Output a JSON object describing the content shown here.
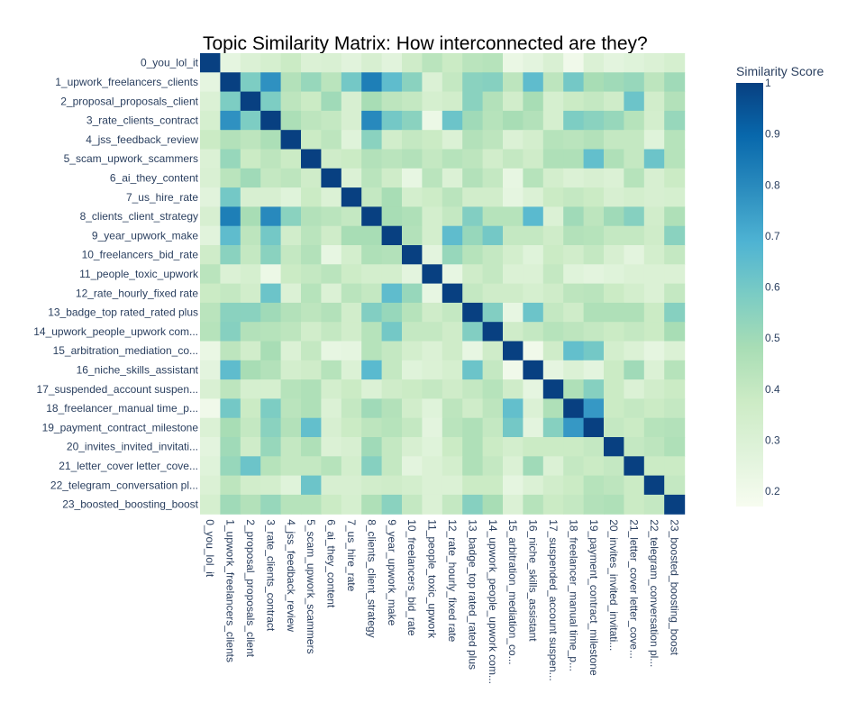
{
  "chart_data": {
    "type": "heatmap",
    "title": "Topic Similarity Matrix: How interconnected are they?",
    "xlabel": "",
    "ylabel": "",
    "colorscale_name": "GnBu",
    "colorscale_stops": [
      "#f7fcf0",
      "#e0f3db",
      "#ccebc5",
      "#a8ddb5",
      "#7bccc4",
      "#4eb3d3",
      "#2b8cbe",
      "#0868ac",
      "#084081"
    ],
    "colorbar": {
      "title": "Similarity Score",
      "range": [
        0.17,
        1.0
      ],
      "ticks": [
        1,
        0.9,
        0.8,
        0.7,
        0.6,
        0.5,
        0.4,
        0.3,
        0.2
      ],
      "tick_labels": [
        "1",
        "0.9",
        "0.8",
        "0.7",
        "0.6",
        "0.5",
        "0.4",
        "0.3",
        "0.2"
      ]
    },
    "categories": [
      "0_you_lol_it",
      "1_upwork_freelancers_clients",
      "2_proposal_proposals_client",
      "3_rate_clients_contract",
      "4_jss_feedback_review",
      "5_scam_upwork_scammers",
      "6_ai_they_content",
      "7_us_hire_rate",
      "8_clients_client_strategy",
      "9_year_upwork_make",
      "10_freelancers_bid_rate",
      "11_people_toxic_upwork",
      "12_rate_hourly_fixed rate",
      "13_badge_top rated_rated plus",
      "14_upwork_people_upwork com...",
      "15_arbitration_mediation_co...",
      "16_niche_skills_assistant",
      "17_suspended_account suspen...",
      "18_freelancer_manual time_p...",
      "19_payment_contract_milestone",
      "20_invites_invited_invitati...",
      "21_letter_cover letter_cove...",
      "22_telegram_conversation pl...",
      "23_boosted_boosting_boost"
    ],
    "z": [
      [
        1.0,
        0.25,
        0.3,
        0.33,
        0.38,
        0.3,
        0.31,
        0.27,
        0.32,
        0.27,
        0.36,
        0.43,
        0.38,
        0.43,
        0.44,
        0.23,
        0.26,
        0.31,
        0.2,
        0.3,
        0.26,
        0.28,
        0.3,
        0.33
      ],
      [
        0.25,
        1.0,
        0.58,
        0.78,
        0.45,
        0.52,
        0.43,
        0.6,
        0.83,
        0.65,
        0.55,
        0.3,
        0.4,
        0.55,
        0.56,
        0.42,
        0.65,
        0.42,
        0.6,
        0.48,
        0.5,
        0.52,
        0.42,
        0.5
      ],
      [
        0.3,
        0.58,
        1.0,
        0.58,
        0.42,
        0.38,
        0.5,
        0.32,
        0.48,
        0.42,
        0.4,
        0.33,
        0.35,
        0.55,
        0.45,
        0.35,
        0.48,
        0.33,
        0.38,
        0.4,
        0.36,
        0.62,
        0.35,
        0.45
      ],
      [
        0.33,
        0.78,
        0.58,
        1.0,
        0.47,
        0.42,
        0.4,
        0.32,
        0.8,
        0.6,
        0.55,
        0.22,
        0.62,
        0.5,
        0.44,
        0.48,
        0.45,
        0.33,
        0.58,
        0.55,
        0.52,
        0.44,
        0.34,
        0.52
      ],
      [
        0.38,
        0.45,
        0.42,
        0.47,
        1.0,
        0.38,
        0.42,
        0.28,
        0.55,
        0.35,
        0.4,
        0.38,
        0.3,
        0.45,
        0.42,
        0.3,
        0.34,
        0.44,
        0.43,
        0.45,
        0.4,
        0.4,
        0.28,
        0.44
      ],
      [
        0.3,
        0.52,
        0.38,
        0.42,
        0.38,
        1.0,
        0.36,
        0.38,
        0.45,
        0.43,
        0.45,
        0.4,
        0.44,
        0.42,
        0.35,
        0.4,
        0.36,
        0.46,
        0.46,
        0.64,
        0.46,
        0.4,
        0.62,
        0.44
      ],
      [
        0.31,
        0.43,
        0.5,
        0.4,
        0.42,
        0.36,
        1.0,
        0.3,
        0.43,
        0.36,
        0.24,
        0.43,
        0.3,
        0.45,
        0.4,
        0.24,
        0.44,
        0.34,
        0.3,
        0.32,
        0.3,
        0.44,
        0.32,
        0.38
      ],
      [
        0.27,
        0.6,
        0.32,
        0.32,
        0.28,
        0.38,
        0.3,
        1.0,
        0.4,
        0.48,
        0.34,
        0.37,
        0.43,
        0.35,
        0.35,
        0.25,
        0.3,
        0.38,
        0.4,
        0.38,
        0.32,
        0.34,
        0.32,
        0.33
      ],
      [
        0.32,
        0.83,
        0.48,
        0.8,
        0.55,
        0.45,
        0.43,
        0.4,
        1.0,
        0.48,
        0.46,
        0.34,
        0.4,
        0.57,
        0.44,
        0.44,
        0.66,
        0.3,
        0.5,
        0.42,
        0.5,
        0.56,
        0.35,
        0.46
      ],
      [
        0.27,
        0.65,
        0.42,
        0.6,
        0.35,
        0.43,
        0.36,
        0.48,
        0.48,
        1.0,
        0.45,
        0.34,
        0.65,
        0.52,
        0.6,
        0.4,
        0.4,
        0.36,
        0.45,
        0.44,
        0.4,
        0.4,
        0.36,
        0.55
      ],
      [
        0.36,
        0.55,
        0.4,
        0.55,
        0.4,
        0.45,
        0.24,
        0.34,
        0.46,
        0.45,
        1.0,
        0.26,
        0.52,
        0.44,
        0.4,
        0.34,
        0.28,
        0.38,
        0.35,
        0.4,
        0.32,
        0.26,
        0.34,
        0.4
      ],
      [
        0.43,
        0.3,
        0.33,
        0.22,
        0.38,
        0.4,
        0.43,
        0.37,
        0.34,
        0.34,
        0.26,
        1.0,
        0.24,
        0.36,
        0.4,
        0.3,
        0.3,
        0.4,
        0.28,
        0.26,
        0.28,
        0.3,
        0.3,
        0.3
      ],
      [
        0.38,
        0.4,
        0.35,
        0.62,
        0.3,
        0.44,
        0.3,
        0.43,
        0.4,
        0.65,
        0.52,
        0.24,
        1.0,
        0.4,
        0.36,
        0.36,
        0.33,
        0.36,
        0.42,
        0.43,
        0.38,
        0.34,
        0.3,
        0.4
      ],
      [
        0.43,
        0.55,
        0.55,
        0.5,
        0.45,
        0.42,
        0.45,
        0.35,
        0.57,
        0.52,
        0.44,
        0.36,
        0.4,
        1.0,
        0.57,
        0.24,
        0.62,
        0.4,
        0.36,
        0.46,
        0.46,
        0.46,
        0.38,
        0.56
      ],
      [
        0.44,
        0.56,
        0.45,
        0.44,
        0.42,
        0.35,
        0.4,
        0.35,
        0.44,
        0.6,
        0.4,
        0.4,
        0.36,
        0.57,
        1.0,
        0.36,
        0.4,
        0.44,
        0.42,
        0.4,
        0.38,
        0.4,
        0.38,
        0.48
      ],
      [
        0.23,
        0.42,
        0.35,
        0.48,
        0.3,
        0.4,
        0.24,
        0.25,
        0.44,
        0.4,
        0.34,
        0.3,
        0.36,
        0.24,
        0.36,
        1.0,
        0.2,
        0.36,
        0.64,
        0.6,
        0.34,
        0.3,
        0.25,
        0.3
      ],
      [
        0.26,
        0.65,
        0.48,
        0.45,
        0.34,
        0.36,
        0.44,
        0.3,
        0.66,
        0.4,
        0.28,
        0.3,
        0.33,
        0.62,
        0.4,
        0.2,
        1.0,
        0.25,
        0.3,
        0.26,
        0.38,
        0.5,
        0.3,
        0.44
      ],
      [
        0.31,
        0.42,
        0.33,
        0.33,
        0.44,
        0.46,
        0.34,
        0.38,
        0.3,
        0.36,
        0.38,
        0.4,
        0.36,
        0.4,
        0.44,
        0.36,
        0.25,
        1.0,
        0.46,
        0.56,
        0.38,
        0.3,
        0.35,
        0.38
      ],
      [
        0.2,
        0.6,
        0.38,
        0.58,
        0.43,
        0.46,
        0.3,
        0.4,
        0.5,
        0.45,
        0.35,
        0.28,
        0.42,
        0.36,
        0.42,
        0.64,
        0.3,
        0.46,
        1.0,
        0.76,
        0.38,
        0.4,
        0.38,
        0.4
      ],
      [
        0.3,
        0.48,
        0.4,
        0.55,
        0.45,
        0.64,
        0.32,
        0.38,
        0.42,
        0.44,
        0.4,
        0.26,
        0.43,
        0.46,
        0.4,
        0.6,
        0.26,
        0.56,
        0.76,
        1.0,
        0.4,
        0.38,
        0.44,
        0.45
      ],
      [
        0.26,
        0.5,
        0.36,
        0.52,
        0.4,
        0.46,
        0.3,
        0.32,
        0.5,
        0.4,
        0.32,
        0.28,
        0.38,
        0.46,
        0.38,
        0.34,
        0.38,
        0.38,
        0.38,
        0.4,
        1.0,
        0.4,
        0.42,
        0.46
      ],
      [
        0.28,
        0.52,
        0.62,
        0.44,
        0.4,
        0.4,
        0.44,
        0.34,
        0.56,
        0.4,
        0.26,
        0.3,
        0.34,
        0.46,
        0.4,
        0.3,
        0.5,
        0.3,
        0.4,
        0.38,
        0.4,
        1.0,
        0.38,
        0.38
      ],
      [
        0.3,
        0.42,
        0.35,
        0.34,
        0.28,
        0.62,
        0.32,
        0.32,
        0.35,
        0.36,
        0.34,
        0.3,
        0.3,
        0.38,
        0.38,
        0.25,
        0.3,
        0.35,
        0.38,
        0.44,
        0.42,
        0.38,
        1.0,
        0.4
      ],
      [
        0.33,
        0.5,
        0.45,
        0.52,
        0.44,
        0.44,
        0.38,
        0.33,
        0.46,
        0.55,
        0.4,
        0.3,
        0.4,
        0.56,
        0.48,
        0.3,
        0.44,
        0.38,
        0.4,
        0.45,
        0.46,
        0.38,
        0.4,
        1.0
      ]
    ]
  }
}
